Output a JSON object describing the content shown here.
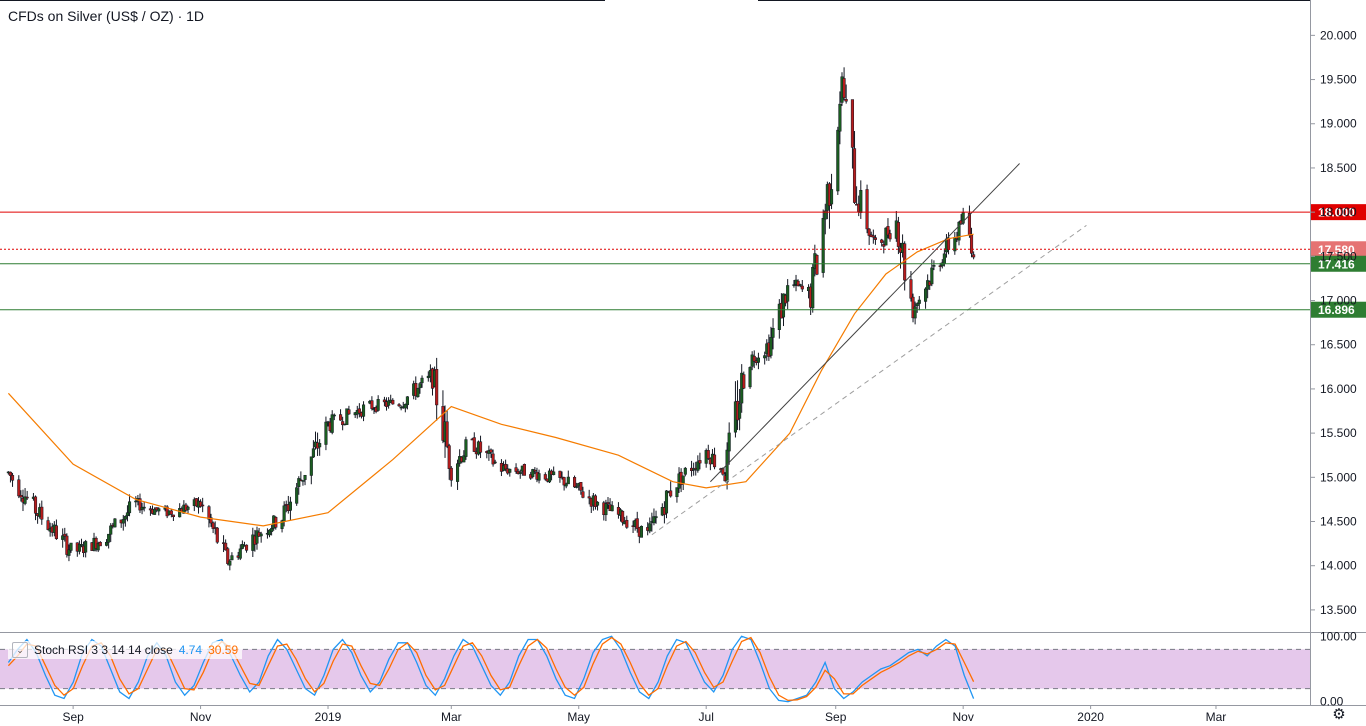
{
  "header": {
    "title": "CFDs on Silver (US$ / OZ) · 1D"
  },
  "indicator": {
    "label": "Stoch RSI 3 3 14 14 close",
    "k_value": "4.74",
    "d_value": "30.59",
    "k_color": "#2196f3",
    "d_color": "#ff6d00"
  },
  "colors": {
    "up": "#26a69a",
    "up_candle": "#1b5e20",
    "down": "#b71c1c",
    "resistance": "#e00000",
    "support": "#2e7d32",
    "ma": "#f57c00",
    "band_fill": "#e1bee7"
  },
  "icons": {
    "settings": "gear-icon",
    "collapse": "chevron-down-icon"
  },
  "chart_data": [
    {
      "type": "candlestick",
      "title": "CFDs on Silver (US$ / OZ) · 1D",
      "x_axis": {
        "tick_labels": [
          "Sep",
          "Nov",
          "2019",
          "Mar",
          "May",
          "Jul",
          "Sep",
          "Nov",
          "2020",
          "Mar"
        ],
        "tick_dates": [
          "2018-09-01",
          "2018-11-01",
          "2019-01-01",
          "2019-03-01",
          "2019-05-01",
          "2019-07-01",
          "2019-09-01",
          "2019-11-01",
          "2020-01-01",
          "2020-03-01"
        ],
        "range": [
          "2018-07-28",
          "2020-04-15"
        ]
      },
      "y_axis": {
        "tick_labels": [
          "13.500",
          "14.000",
          "14.500",
          "15.000",
          "15.500",
          "16.000",
          "16.500",
          "17.000",
          "17.500",
          "18.000",
          "18.500",
          "19.000",
          "19.500",
          "20.000"
        ],
        "range": [
          13.25,
          20.4
        ]
      },
      "price_series": {
        "name": "",
        "dates": [
          "2018-08-01",
          "2018-08-15",
          "2018-09-01",
          "2018-09-15",
          "2018-10-01",
          "2018-10-15",
          "2018-11-01",
          "2018-11-14",
          "2018-11-25",
          "2018-12-10",
          "2019-01-01",
          "2019-01-20",
          "2019-02-05",
          "2019-02-20",
          "2019-03-01",
          "2019-03-10",
          "2019-03-25",
          "2019-04-10",
          "2019-04-25",
          "2019-05-10",
          "2019-05-25",
          "2019-06-03",
          "2019-06-15",
          "2019-07-01",
          "2019-07-10",
          "2019-07-20",
          "2019-07-31",
          "2019-08-10",
          "2019-08-20",
          "2019-08-30",
          "2019-09-04",
          "2019-09-10",
          "2019-09-20",
          "2019-09-30",
          "2019-10-08",
          "2019-10-20",
          "2019-10-30",
          "2019-11-01",
          "2019-11-06"
        ],
        "values": [
          15.05,
          14.6,
          14.15,
          14.3,
          14.7,
          14.6,
          14.7,
          14.05,
          14.3,
          14.55,
          15.6,
          15.8,
          15.85,
          16.15,
          15.1,
          15.4,
          15.1,
          15.05,
          14.95,
          14.7,
          14.5,
          14.35,
          14.9,
          15.3,
          15.05,
          16.3,
          16.5,
          17.2,
          17.05,
          18.5,
          19.5,
          18.3,
          17.6,
          17.9,
          16.9,
          17.45,
          17.8,
          17.95,
          17.58
        ]
      },
      "moving_average": {
        "dates": [
          "2018-08-01",
          "2018-09-01",
          "2018-10-01",
          "2018-11-01",
          "2018-12-01",
          "2019-01-01",
          "2019-02-01",
          "2019-03-01",
          "2019-03-25",
          "2019-04-20",
          "2019-05-20",
          "2019-06-15",
          "2019-07-01",
          "2019-07-20",
          "2019-08-10",
          "2019-08-25",
          "2019-09-10",
          "2019-09-25",
          "2019-10-10",
          "2019-10-25",
          "2019-11-06"
        ],
        "values": [
          15.95,
          15.15,
          14.75,
          14.55,
          14.45,
          14.6,
          15.2,
          15.8,
          15.6,
          15.45,
          15.25,
          14.95,
          14.88,
          14.95,
          15.5,
          16.2,
          16.85,
          17.3,
          17.55,
          17.7,
          17.75
        ]
      },
      "horizontal_lines": [
        {
          "label": "18.000",
          "value": 18.0,
          "color": "#e00000",
          "style": "solid"
        },
        {
          "label": "17.580",
          "value": 17.58,
          "color": "#e00000",
          "style": "dotted"
        },
        {
          "label": "17.416",
          "value": 17.416,
          "color": "#2e7d32",
          "style": "solid"
        },
        {
          "label": "16.896",
          "value": 16.896,
          "color": "#2e7d32",
          "style": "solid"
        }
      ],
      "trend_lines": [
        {
          "from": [
            "2019-07-03",
            14.95
          ],
          "to": [
            "2019-11-28",
            18.55
          ],
          "style": "solid"
        },
        {
          "from": [
            "2019-06-05",
            14.35
          ],
          "to": [
            "2019-12-30",
            17.85
          ],
          "style": "dashed"
        }
      ],
      "grid": false,
      "legend": "none"
    },
    {
      "type": "line",
      "title": "Stoch RSI 3 3 14 14 close",
      "y_axis": {
        "tick_labels": [
          "0.00",
          "100.00"
        ],
        "range": [
          -5,
          105
        ]
      },
      "bands": [
        20,
        80
      ],
      "series": [
        {
          "name": "",
          "color": "#2196f3",
          "last_value": 4.74,
          "values": [
            60,
            80,
            95,
            75,
            40,
            10,
            5,
            30,
            75,
            95,
            85,
            50,
            15,
            5,
            30,
            70,
            90,
            70,
            30,
            10,
            25,
            60,
            90,
            95,
            70,
            40,
            15,
            30,
            70,
            95,
            80,
            50,
            20,
            10,
            40,
            80,
            95,
            75,
            40,
            15,
            30,
            65,
            90,
            90,
            60,
            25,
            10,
            35,
            70,
            95,
            85,
            55,
            25,
            10,
            30,
            70,
            95,
            95,
            70,
            35,
            10,
            5,
            35,
            75,
            95,
            100,
            80,
            45,
            15,
            5,
            30,
            70,
            95,
            90,
            60,
            30,
            15,
            40,
            80,
            100,
            95,
            60,
            20,
            2,
            0,
            5,
            10,
            30,
            60,
            20,
            5,
            15,
            30,
            40,
            50,
            55,
            65,
            75,
            80,
            70,
            85,
            95,
            85,
            40,
            4.74
          ]
        },
        {
          "name": "",
          "color": "#ff6d00",
          "last_value": 30.59,
          "values": [
            55,
            70,
            88,
            85,
            55,
            25,
            10,
            20,
            55,
            85,
            90,
            70,
            35,
            12,
            20,
            50,
            80,
            80,
            50,
            20,
            18,
            45,
            78,
            92,
            82,
            55,
            28,
            25,
            55,
            85,
            88,
            65,
            35,
            15,
            28,
            62,
            88,
            85,
            55,
            28,
            25,
            50,
            80,
            90,
            75,
            40,
            18,
            25,
            55,
            85,
            90,
            70,
            40,
            18,
            22,
            55,
            85,
            95,
            82,
            50,
            22,
            10,
            22,
            58,
            88,
            98,
            88,
            60,
            28,
            10,
            20,
            55,
            85,
            92,
            75,
            45,
            22,
            30,
            62,
            92,
            98,
            75,
            38,
            10,
            2,
            3,
            8,
            22,
            48,
            35,
            12,
            12,
            25,
            35,
            45,
            52,
            60,
            70,
            77,
            73,
            80,
            90,
            88,
            60,
            30.59
          ]
        }
      ]
    }
  ]
}
